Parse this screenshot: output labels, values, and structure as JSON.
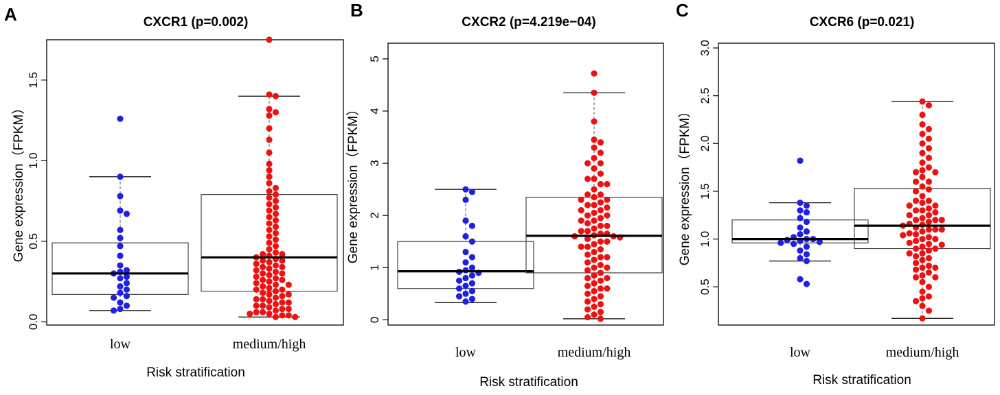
{
  "chart_data": [
    {
      "type": "box-dot",
      "panel": "A",
      "title": "CXCR1 (p=0.002)",
      "ylabel": "Gene expression（FPKM）",
      "xlabel": "Risk stratification",
      "categories": [
        "low",
        "medium/high"
      ],
      "ylim": [
        -0.02,
        1.75
      ],
      "yticks": [
        "0.0",
        "0.5",
        "1.0",
        "1.5"
      ],
      "boxes": [
        {
          "category": "low",
          "whisker_low": 0.07,
          "q1": 0.17,
          "median": 0.3,
          "q3": 0.49,
          "whisker_high": 0.9,
          "color": "#1f1fe6"
        },
        {
          "category": "medium/high",
          "whisker_low": 0.03,
          "q1": 0.19,
          "median": 0.4,
          "q3": 0.79,
          "whisker_high": 1.4,
          "color": "#ee1111"
        }
      ],
      "points": [
        {
          "category": "low",
          "values": [
            1.26,
            0.9,
            0.78,
            0.69,
            0.67,
            0.57,
            0.52,
            0.47,
            0.41,
            0.35,
            0.32,
            0.31,
            0.3,
            0.28,
            0.27,
            0.24,
            0.22,
            0.2,
            0.18,
            0.16,
            0.15,
            0.12,
            0.1,
            0.08,
            0.07
          ]
        },
        {
          "category": "medium/high",
          "values": [
            1.75,
            1.41,
            1.4,
            1.32,
            1.3,
            1.28,
            1.2,
            1.13,
            1.05,
            0.98,
            0.94,
            0.9,
            0.86,
            0.83,
            0.81,
            0.79,
            0.77,
            0.75,
            0.73,
            0.71,
            0.69,
            0.67,
            0.65,
            0.63,
            0.61,
            0.59,
            0.57,
            0.55,
            0.53,
            0.51,
            0.49,
            0.47,
            0.45,
            0.43,
            0.42,
            0.41,
            0.4,
            0.39,
            0.38,
            0.37,
            0.36,
            0.35,
            0.34,
            0.33,
            0.32,
            0.31,
            0.3,
            0.29,
            0.28,
            0.27,
            0.26,
            0.25,
            0.24,
            0.23,
            0.22,
            0.21,
            0.2,
            0.19,
            0.18,
            0.17,
            0.16,
            0.15,
            0.14,
            0.13,
            0.12,
            0.11,
            0.1,
            0.09,
            0.08,
            0.07,
            0.06,
            0.05,
            0.04,
            0.03,
            0.03,
            0.04,
            0.05,
            0.06,
            0.08,
            0.1,
            0.12,
            0.14,
            0.17,
            0.2,
            0.23,
            0.26,
            0.3,
            0.34,
            0.38,
            0.42
          ]
        }
      ]
    },
    {
      "type": "box-dot",
      "panel": "B",
      "title": "CXCR2 (p=4.219e−04)",
      "ylabel": "Gene expression（FPKM）",
      "xlabel": "Risk stratification",
      "categories": [
        "low",
        "medium/high"
      ],
      "ylim": [
        -0.1,
        5.3
      ],
      "yticks": [
        "0",
        "1",
        "2",
        "3",
        "4",
        "5"
      ],
      "boxes": [
        {
          "category": "low",
          "whisker_low": 0.33,
          "q1": 0.6,
          "median": 0.93,
          "q3": 1.5,
          "whisker_high": 2.5,
          "color": "#1f1fe6"
        },
        {
          "category": "medium/high",
          "whisker_low": 0.02,
          "q1": 0.9,
          "median": 1.61,
          "q3": 2.35,
          "whisker_high": 4.35,
          "color": "#ee1111"
        }
      ],
      "points": [
        {
          "category": "low",
          "values": [
            2.5,
            2.45,
            2.3,
            1.9,
            1.8,
            1.6,
            1.5,
            1.3,
            1.2,
            1.1,
            1.0,
            0.95,
            0.92,
            0.9,
            0.85,
            0.8,
            0.75,
            0.7,
            0.65,
            0.6,
            0.55,
            0.5,
            0.45,
            0.4,
            0.35
          ]
        },
        {
          "category": "medium/high",
          "values": [
            4.72,
            4.35,
            3.8,
            3.45,
            3.4,
            3.3,
            3.2,
            3.1,
            3.0,
            2.9,
            2.8,
            2.7,
            2.6,
            2.5,
            2.4,
            2.35,
            2.3,
            2.25,
            2.2,
            2.15,
            2.1,
            2.05,
            2.0,
            1.95,
            1.9,
            1.85,
            1.8,
            1.75,
            1.7,
            1.65,
            1.62,
            1.6,
            1.58,
            1.55,
            1.5,
            1.45,
            1.4,
            1.35,
            1.3,
            1.25,
            1.2,
            1.15,
            1.1,
            1.05,
            1.0,
            0.95,
            0.9,
            0.85,
            0.8,
            0.75,
            0.7,
            0.65,
            0.6,
            0.55,
            0.5,
            0.45,
            0.4,
            0.35,
            0.3,
            0.25,
            0.2,
            0.15,
            0.1,
            0.05,
            0.02,
            1.6,
            1.7,
            1.8,
            2.0,
            2.2,
            2.4,
            2.6,
            1.4,
            1.2,
            1.0,
            0.8,
            0.6,
            1.5,
            1.65,
            1.9,
            2.1,
            2.3,
            2.7,
            3.0
          ]
        }
      ]
    },
    {
      "type": "box-dot",
      "panel": "C",
      "title": "CXCR6 (p=0.021)",
      "ylabel": "Gene expression（FPKM）",
      "xlabel": "Risk stratification",
      "categories": [
        "low",
        "medium/high"
      ],
      "ylim": [
        0.1,
        3.05
      ],
      "yticks": [
        "0.5",
        "1.0",
        "1.5",
        "2.0",
        "2.5",
        "3.0"
      ],
      "boxes": [
        {
          "category": "low",
          "whisker_low": 0.77,
          "q1": 0.96,
          "median": 1.0,
          "q3": 1.2,
          "whisker_high": 1.38,
          "color": "#1f1fe6"
        },
        {
          "category": "medium/high",
          "whisker_low": 0.17,
          "q1": 0.9,
          "median": 1.14,
          "q3": 1.53,
          "whisker_high": 2.44,
          "color": "#ee1111"
        }
      ],
      "points": [
        {
          "category": "low",
          "values": [
            1.82,
            1.38,
            1.35,
            1.3,
            1.28,
            1.22,
            1.18,
            1.12,
            1.08,
            1.05,
            1.02,
            1.0,
            1.0,
            0.99,
            0.98,
            0.97,
            0.96,
            0.95,
            0.92,
            0.88,
            0.84,
            0.8,
            0.77,
            0.58,
            0.53
          ]
        },
        {
          "category": "medium/high",
          "values": [
            2.44,
            2.4,
            2.3,
            2.2,
            2.15,
            2.1,
            2.05,
            2.0,
            1.95,
            1.9,
            1.85,
            1.8,
            1.75,
            1.72,
            1.7,
            1.65,
            1.6,
            1.55,
            1.52,
            1.5,
            1.45,
            1.4,
            1.38,
            1.35,
            1.32,
            1.3,
            1.28,
            1.25,
            1.22,
            1.2,
            1.18,
            1.16,
            1.14,
            1.12,
            1.1,
            1.08,
            1.06,
            1.04,
            1.02,
            1.0,
            0.98,
            0.96,
            0.94,
            0.92,
            0.9,
            0.88,
            0.85,
            0.82,
            0.8,
            0.78,
            0.75,
            0.72,
            0.7,
            0.68,
            0.65,
            0.62,
            0.6,
            0.55,
            0.5,
            0.45,
            0.4,
            0.38,
            0.35,
            0.3,
            0.25,
            0.17,
            1.0,
            1.05,
            1.1,
            1.15,
            1.2,
            1.25,
            1.3,
            0.95,
            0.9,
            0.85,
            1.4,
            1.6,
            1.7,
            0.7,
            0.6,
            1.1,
            1.2,
            1.35
          ]
        }
      ]
    }
  ]
}
